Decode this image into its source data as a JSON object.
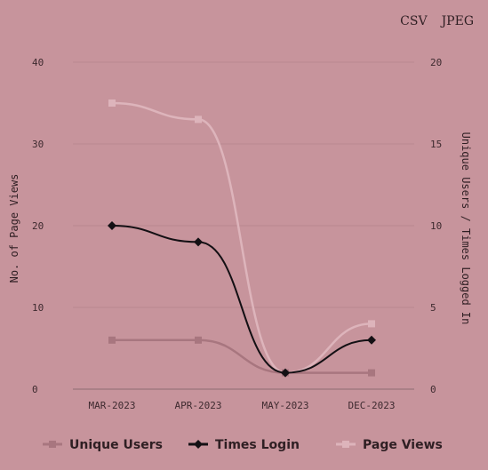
{
  "toolbar": {
    "csv_label": "CSV",
    "jpeg_label": "JPEG"
  },
  "chart_data": {
    "type": "line",
    "categories": [
      "MAR-2023",
      "APR-2023",
      "MAY-2023",
      "DEC-2023"
    ],
    "left_axis": {
      "label": "No. of Page Views",
      "range": [
        0,
        40
      ],
      "ticks": [
        0,
        10,
        20,
        30,
        40
      ]
    },
    "right_axis": {
      "label": "Unique Users / Times Logged In",
      "range": [
        0,
        20
      ],
      "ticks": [
        0,
        5,
        10,
        15,
        20
      ]
    },
    "grid": true,
    "legend_position": "bottom",
    "series": [
      {
        "name": "Unique Users",
        "axis": "right",
        "values": [
          3,
          3,
          1,
          1
        ],
        "color": "#a8767f",
        "marker": "square"
      },
      {
        "name": "Times Login",
        "axis": "right",
        "values": [
          10,
          9,
          1,
          3
        ],
        "color": "#141014",
        "marker": "diamond"
      },
      {
        "name": "Page Views",
        "axis": "left",
        "values": [
          35,
          33,
          2,
          8
        ],
        "color": "#ddb4bb",
        "marker": "square"
      }
    ]
  }
}
